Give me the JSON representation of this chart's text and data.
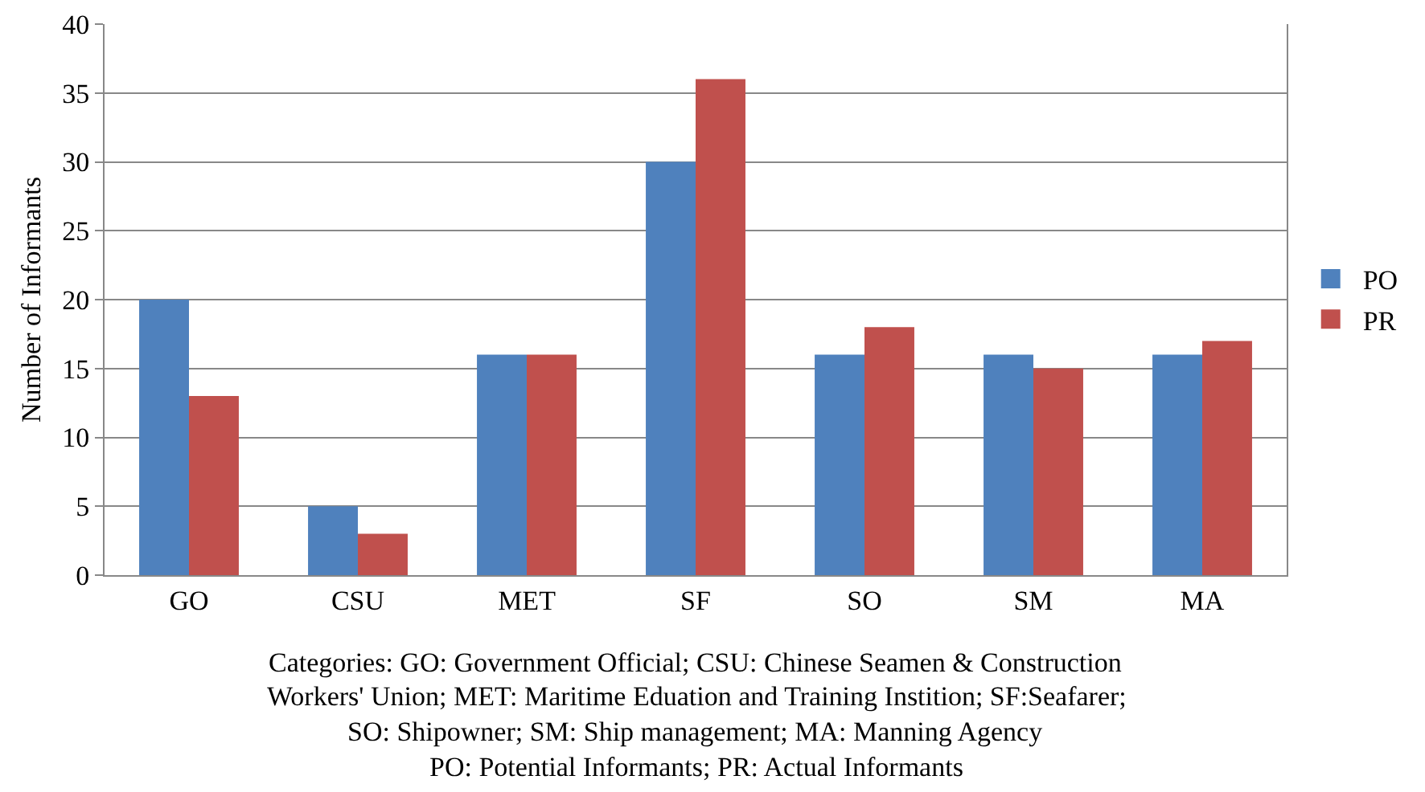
{
  "chart_data": {
    "type": "bar",
    "ylabel": "Number of Informants",
    "categories": [
      "GO",
      "CSU",
      "MET",
      "SF",
      "SO",
      "SM",
      "MA"
    ],
    "series": [
      {
        "name": "PO",
        "color": "#4f81bd",
        "values": [
          20,
          5,
          16,
          30,
          16,
          16,
          16
        ]
      },
      {
        "name": "PR",
        "color": "#c0504d",
        "values": [
          13,
          3,
          16,
          36,
          18,
          15,
          17
        ]
      }
    ],
    "ylim": [
      0,
      40
    ],
    "yticks": [
      0,
      5,
      10,
      15,
      20,
      25,
      30,
      35,
      40
    ],
    "grid": "y",
    "legend": "right",
    "annotations": [
      "Categories: GO: Government Official; CSU: Chinese Seamen & Construction",
      "Workers' Union; MET: Maritime Eduation and Training Instition; SF:Seafarer;",
      "SO: Shipowner; SM: Ship management; MA: Manning Agency",
      "PO: Potential Informants; PR: Actual Informants"
    ]
  }
}
